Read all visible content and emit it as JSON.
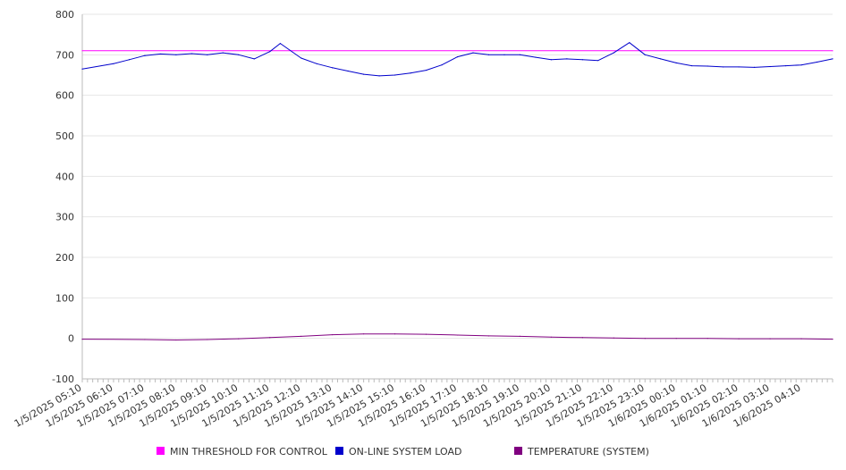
{
  "chart_data": {
    "type": "line",
    "title": "",
    "xlabel": "",
    "ylabel": "",
    "ylim": [
      -100,
      800
    ],
    "yticks": [
      -100,
      0,
      100,
      200,
      300,
      400,
      500,
      600,
      700,
      800
    ],
    "xtick_labels": [
      "1/5/2025 05:10",
      "1/5/2025 06:10",
      "1/5/2025 07:10",
      "1/5/2025 08:10",
      "1/5/2025 09:10",
      "1/5/2025 10:10",
      "1/5/2025 11:10",
      "1/5/2025 12:10",
      "1/5/2025 13:10",
      "1/5/2025 14:10",
      "1/5/2025 15:10",
      "1/5/2025 16:10",
      "1/5/2025 17:10",
      "1/5/2025 18:10",
      "1/5/2025 19:10",
      "1/5/2025 20:10",
      "1/5/2025 21:10",
      "1/5/2025 22:10",
      "1/5/2025 23:10",
      "1/6/2025 00:10",
      "1/6/2025 01:10",
      "1/6/2025 02:10",
      "1/6/2025 03:10",
      "1/6/2025 04:10"
    ],
    "grid": true,
    "legend_position": "bottom",
    "series": [
      {
        "name": "MIN THRESHOLD FOR CONTROL",
        "color": "#ff00ff",
        "x": [
          "1/5/2025 05:10",
          "1/6/2025 05:10"
        ],
        "values": [
          710,
          710
        ]
      },
      {
        "name": "ON-LINE SYSTEM LOAD",
        "color": "#0000cc",
        "x": [
          "1/5/2025 05:10",
          "1/5/2025 06:10",
          "1/5/2025 06:40",
          "1/5/2025 07:10",
          "1/5/2025 07:40",
          "1/5/2025 08:10",
          "1/5/2025 08:40",
          "1/5/2025 09:10",
          "1/5/2025 09:40",
          "1/5/2025 10:10",
          "1/5/2025 10:40",
          "1/5/2025 11:10",
          "1/5/2025 11:30",
          "1/5/2025 12:10",
          "1/5/2025 12:40",
          "1/5/2025 13:10",
          "1/5/2025 13:40",
          "1/5/2025 14:10",
          "1/5/2025 14:40",
          "1/5/2025 15:10",
          "1/5/2025 15:40",
          "1/5/2025 16:10",
          "1/5/2025 16:40",
          "1/5/2025 17:10",
          "1/5/2025 17:40",
          "1/5/2025 18:10",
          "1/5/2025 18:40",
          "1/5/2025 19:10",
          "1/5/2025 19:40",
          "1/5/2025 20:10",
          "1/5/2025 20:40",
          "1/5/2025 21:10",
          "1/5/2025 21:40",
          "1/5/2025 22:10",
          "1/5/2025 22:40",
          "1/5/2025 23:10",
          "1/5/2025 23:40",
          "1/6/2025 00:10",
          "1/6/2025 00:40",
          "1/6/2025 01:10",
          "1/6/2025 01:40",
          "1/6/2025 02:10",
          "1/6/2025 02:40",
          "1/6/2025 03:10",
          "1/6/2025 03:40",
          "1/6/2025 04:10",
          "1/6/2025 04:40",
          "1/6/2025 05:10"
        ],
        "values": [
          665,
          678,
          688,
          698,
          702,
          700,
          703,
          700,
          705,
          700,
          690,
          708,
          728,
          692,
          678,
          668,
          660,
          652,
          648,
          650,
          655,
          662,
          675,
          695,
          705,
          700,
          700,
          700,
          694,
          688,
          690,
          688,
          686,
          705,
          730,
          700,
          690,
          680,
          673,
          672,
          670,
          670,
          669,
          671,
          673,
          675,
          682,
          690
        ]
      },
      {
        "name": "TEMPERATURE (SYSTEM)",
        "color": "#800080",
        "x": [
          "1/5/2025 05:10",
          "1/5/2025 07:10",
          "1/5/2025 08:10",
          "1/5/2025 09:10",
          "1/5/2025 10:10",
          "1/5/2025 11:10",
          "1/5/2025 12:10",
          "1/5/2025 13:10",
          "1/5/2025 14:10",
          "1/5/2025 15:10",
          "1/5/2025 16:10",
          "1/5/2025 17:10",
          "1/5/2025 18:10",
          "1/5/2025 19:10",
          "1/5/2025 20:10",
          "1/5/2025 21:10",
          "1/5/2025 22:10",
          "1/5/2025 23:10",
          "1/6/2025 00:10",
          "1/6/2025 01:10",
          "1/6/2025 02:10",
          "1/6/2025 03:10",
          "1/6/2025 04:10",
          "1/6/2025 05:10"
        ],
        "values": [
          -2,
          -3,
          -4,
          -3,
          -1,
          2,
          5,
          9,
          11,
          11,
          10,
          8,
          6,
          5,
          3,
          2,
          1,
          0,
          0,
          0,
          -1,
          -1,
          -1,
          -2
        ]
      }
    ]
  }
}
